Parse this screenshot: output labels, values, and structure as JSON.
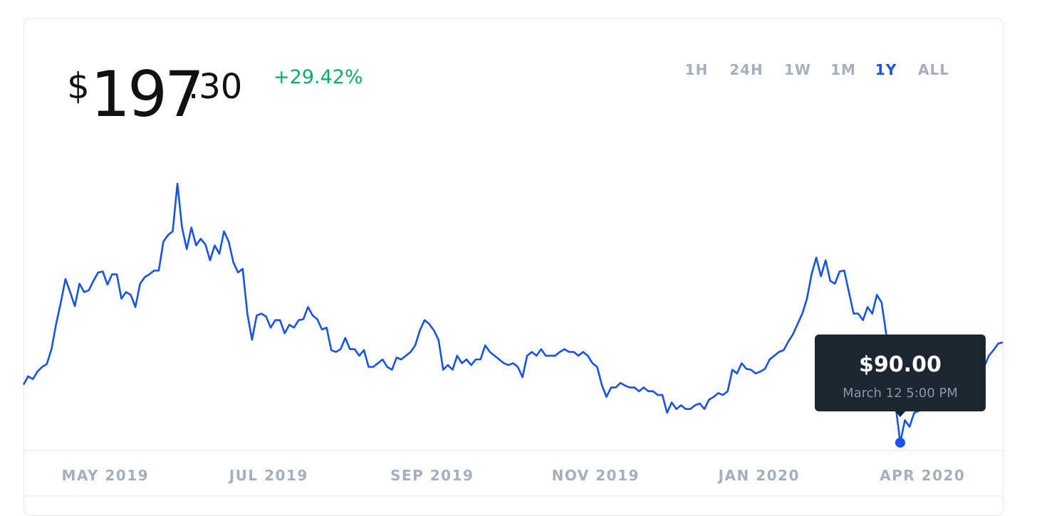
{
  "header": {
    "price": {
      "currency": "$",
      "whole": "197",
      "cents": ".30"
    },
    "change": "+29.42%",
    "change_color": "#05b169"
  },
  "ranges": [
    {
      "label": "1H",
      "active": false
    },
    {
      "label": "24H",
      "active": false
    },
    {
      "label": "1W",
      "active": false
    },
    {
      "label": "1M",
      "active": false
    },
    {
      "label": "1Y",
      "active": true
    },
    {
      "label": "ALL",
      "active": false
    }
  ],
  "chart_data": {
    "type": "line",
    "series": [
      {
        "color": "#1652f0",
        "values": [
          152,
          161,
          158,
          166,
          171,
          174,
          190,
          217,
          240,
          265,
          251,
          236,
          260,
          251,
          253,
          263,
          272,
          273,
          259,
          270,
          270,
          244,
          251,
          248,
          235,
          260,
          267,
          270,
          274,
          274,
          305,
          312,
          316,
          367,
          320,
          297,
          320,
          301,
          308,
          302,
          285,
          301,
          292,
          316,
          305,
          283,
          272,
          276,
          228,
          200,
          226,
          228,
          225,
          213,
          221,
          221,
          207,
          216,
          213,
          221,
          222,
          235,
          226,
          222,
          211,
          213,
          189,
          187,
          190,
          202,
          190,
          190,
          183,
          189,
          171,
          171,
          175,
          179,
          171,
          168,
          181,
          179,
          183,
          187,
          194,
          210,
          221,
          217,
          210,
          200,
          168,
          173,
          168,
          183,
          175,
          179,
          173,
          179,
          179,
          194,
          187,
          183,
          179,
          175,
          173,
          175,
          171,
          160,
          183,
          187,
          183,
          190,
          183,
          183,
          183,
          187,
          190,
          187,
          187,
          183,
          187,
          183,
          175,
          171,
          152,
          139,
          149,
          149,
          154,
          151,
          149,
          149,
          145,
          149,
          145,
          145,
          141,
          141,
          122,
          133,
          126,
          130,
          126,
          126,
          130,
          132,
          126,
          136,
          139,
          143,
          141,
          145,
          168,
          164,
          175,
          169,
          168,
          164,
          166,
          169,
          179,
          183,
          187,
          189,
          198,
          206,
          217,
          228,
          244,
          270,
          288,
          268,
          285,
          263,
          260,
          273,
          274,
          251,
          228,
          228,
          221,
          235,
          228,
          248,
          240,
          206,
          137,
          130,
          90,
          114,
          107,
          122,
          124,
          126,
          130,
          134,
          137,
          137,
          141,
          149,
          152,
          156,
          160,
          171,
          175,
          190,
          171,
          183,
          189,
          196,
          197.3
        ]
      }
    ],
    "xlabels": [
      "MAY 2019",
      "JUL 2019",
      "SEP 2019",
      "NOV 2019",
      "JAN 2020",
      "APR 2020"
    ],
    "ylim": [
      81.6,
      395.9
    ],
    "tooltip": {
      "value": 90,
      "label": "$90.00",
      "date": "March 12 5:00 PM"
    }
  }
}
